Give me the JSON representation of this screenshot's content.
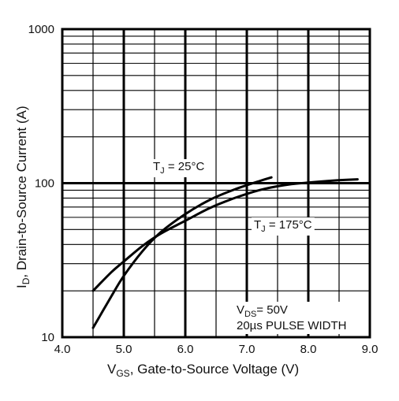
{
  "chart_data": {
    "type": "line",
    "xlabel_main": "V",
    "xlabel_sub": "GS",
    "xlabel_rest": ", Gate-to-Source Voltage (V)",
    "ylabel_main": "I",
    "ylabel_sub": "D",
    "ylabel_rest": ",  Drain-to-Source Current (A)",
    "xlim": [
      4.0,
      9.0
    ],
    "ylim": [
      10,
      1000
    ],
    "yscale": "log",
    "grid": true,
    "x_ticks": [
      {
        "value": 4.0,
        "label": "4.0"
      },
      {
        "value": 5.0,
        "label": "5.0"
      },
      {
        "value": 6.0,
        "label": "6.0"
      },
      {
        "value": 7.0,
        "label": "7.0"
      },
      {
        "value": 8.0,
        "label": "8.0"
      },
      {
        "value": 9.0,
        "label": "9.0"
      }
    ],
    "y_ticks": [
      {
        "value": 10,
        "label": "10"
      },
      {
        "value": 100,
        "label": "100"
      },
      {
        "value": 1000,
        "label": "1000"
      }
    ],
    "series": [
      {
        "name": "TJ = 25°C",
        "x": [
          4.5,
          4.8,
          5.0,
          5.3,
          5.6,
          6.0,
          6.4,
          6.8,
          7.2,
          7.4
        ],
        "y": [
          11.5,
          18.5,
          25,
          36,
          48,
          63,
          78,
          91,
          103,
          109
        ]
      },
      {
        "name": "TJ = 175°C",
        "x": [
          4.5,
          4.8,
          5.0,
          5.3,
          5.6,
          6.0,
          6.4,
          6.8,
          7.2,
          7.6,
          8.0,
          8.4,
          8.8
        ],
        "y": [
          20,
          26.5,
          31,
          39,
          47,
          57,
          69,
          80,
          90,
          97,
          101,
          104,
          106
        ]
      }
    ],
    "annotations": {
      "tj25_main": "T",
      "tj25_sub": "J",
      "tj25_rest": " = 25°C",
      "tj175_main": "T",
      "tj175_sub": "J",
      "tj175_rest": " = 175°C",
      "vds_main": "V",
      "vds_sub": "DS",
      "vds_rest": "= 50V",
      "pulse": "20µs PULSE WIDTH"
    }
  }
}
